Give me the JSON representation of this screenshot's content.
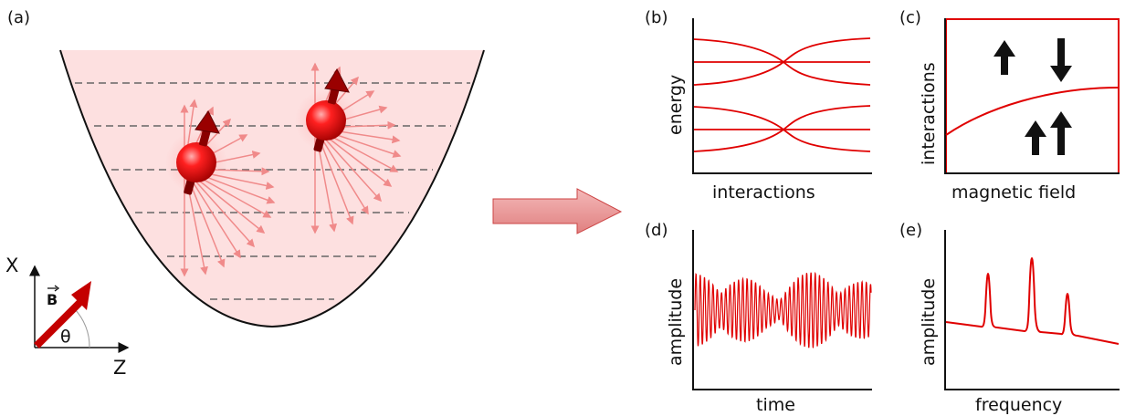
{
  "panels": {
    "a": {
      "label": "(a)",
      "axes": {
        "x_label": "X",
        "z_label": "Z",
        "field_label": "B",
        "angle_label": "θ"
      }
    },
    "b": {
      "label": "(b)",
      "xlabel": "interactions",
      "ylabel": "energy"
    },
    "c": {
      "label": "(c)",
      "xlabel": "magnetic field",
      "ylabel": "interactions"
    },
    "d": {
      "label": "(d)",
      "xlabel": "time",
      "ylabel": "amplitude"
    },
    "e": {
      "label": "(e)",
      "xlabel": "frequency",
      "ylabel": "amplitude"
    }
  },
  "colors": {
    "accent": "#e00000",
    "trap_fill": "#fde0e0",
    "atom": "#e00000",
    "arrow_pointer": "#e8a0a0",
    "dark_red": "#c00000"
  },
  "icons": {
    "big_arrow": "right-arrow",
    "spin_up": "up-arrow",
    "spin_down": "down-arrow"
  }
}
